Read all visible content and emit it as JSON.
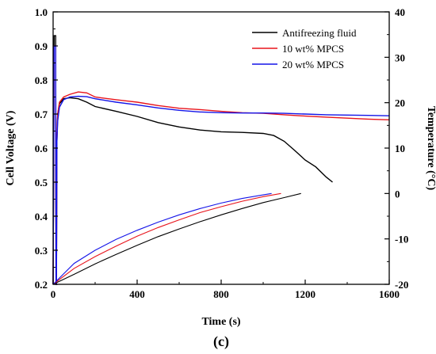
{
  "chart_data": {
    "type": "line",
    "xlabel": "Time (s)",
    "ylabel_left": "Cell Voltage (V)",
    "ylabel_right": "Temperature (°C)",
    "panel_label": "(c)",
    "xlim": [
      0,
      1600
    ],
    "ylim_left": [
      0.2,
      1.0
    ],
    "ylim_right": [
      -20,
      40
    ],
    "x_ticks": [
      "0",
      "400",
      "800",
      "1200",
      "1600"
    ],
    "y_ticks_left": [
      "0.2",
      "0.3",
      "0.4",
      "0.5",
      "0.6",
      "0.7",
      "0.8",
      "0.9",
      "1.0"
    ],
    "y_ticks_right": [
      "-20",
      "-10",
      "0",
      "10",
      "20",
      "30",
      "40"
    ],
    "legend": {
      "position": "top-right",
      "entries": [
        {
          "name": "Antifreezing fluid",
          "color": "#000000"
        },
        {
          "name": "10 wt% MPCS",
          "color": "#e8141c"
        },
        {
          "name": "20 wt% MPCS",
          "color": "#1414e8"
        }
      ]
    },
    "voltage_series": [
      {
        "name": "Antifreezing fluid",
        "color": "#000000",
        "points": [
          [
            0,
            0.2
          ],
          [
            5,
            0.93
          ],
          [
            12,
            0.93
          ],
          [
            14,
            0.2
          ],
          [
            16,
            0.2
          ],
          [
            18,
            0.62
          ],
          [
            22,
            0.7
          ],
          [
            30,
            0.73
          ],
          [
            50,
            0.745
          ],
          [
            80,
            0.748
          ],
          [
            120,
            0.745
          ],
          [
            160,
            0.735
          ],
          [
            200,
            0.722
          ],
          [
            300,
            0.708
          ],
          [
            400,
            0.693
          ],
          [
            500,
            0.675
          ],
          [
            600,
            0.662
          ],
          [
            700,
            0.653
          ],
          [
            800,
            0.648
          ],
          [
            900,
            0.646
          ],
          [
            1000,
            0.643
          ],
          [
            1050,
            0.637
          ],
          [
            1100,
            0.62
          ],
          [
            1150,
            0.593
          ],
          [
            1200,
            0.565
          ],
          [
            1250,
            0.545
          ],
          [
            1300,
            0.515
          ],
          [
            1330,
            0.5
          ]
        ]
      },
      {
        "name": "10 wt% MPCS",
        "color": "#e8141c",
        "points": [
          [
            0,
            0.2
          ],
          [
            5,
            0.9
          ],
          [
            12,
            0.9
          ],
          [
            14,
            0.2
          ],
          [
            16,
            0.2
          ],
          [
            18,
            0.64
          ],
          [
            22,
            0.7
          ],
          [
            30,
            0.735
          ],
          [
            50,
            0.75
          ],
          [
            80,
            0.758
          ],
          [
            120,
            0.765
          ],
          [
            160,
            0.762
          ],
          [
            200,
            0.75
          ],
          [
            300,
            0.742
          ],
          [
            400,
            0.735
          ],
          [
            500,
            0.725
          ],
          [
            600,
            0.717
          ],
          [
            700,
            0.713
          ],
          [
            800,
            0.708
          ],
          [
            900,
            0.704
          ],
          [
            1000,
            0.702
          ],
          [
            1100,
            0.698
          ],
          [
            1200,
            0.694
          ],
          [
            1300,
            0.691
          ],
          [
            1400,
            0.688
          ],
          [
            1500,
            0.685
          ],
          [
            1600,
            0.683
          ]
        ]
      },
      {
        "name": "20 wt% MPCS",
        "color": "#1414e8",
        "points": [
          [
            0,
            0.2
          ],
          [
            5,
            0.9
          ],
          [
            12,
            0.9
          ],
          [
            14,
            0.2
          ],
          [
            16,
            0.2
          ],
          [
            18,
            0.62
          ],
          [
            22,
            0.68
          ],
          [
            30,
            0.72
          ],
          [
            50,
            0.742
          ],
          [
            80,
            0.75
          ],
          [
            120,
            0.752
          ],
          [
            160,
            0.751
          ],
          [
            200,
            0.745
          ],
          [
            300,
            0.735
          ],
          [
            400,
            0.727
          ],
          [
            500,
            0.718
          ],
          [
            600,
            0.711
          ],
          [
            700,
            0.706
          ],
          [
            800,
            0.704
          ],
          [
            900,
            0.703
          ],
          [
            1000,
            0.703
          ],
          [
            1100,
            0.702
          ],
          [
            1200,
            0.7
          ],
          [
            1300,
            0.698
          ],
          [
            1400,
            0.697
          ],
          [
            1500,
            0.696
          ],
          [
            1600,
            0.695
          ]
        ]
      }
    ],
    "temperature_series": [
      {
        "name": "Antifreezing fluid",
        "color": "#000000",
        "points": [
          [
            0,
            -20
          ],
          [
            100,
            -17.8
          ],
          [
            200,
            -15.5
          ],
          [
            300,
            -13.4
          ],
          [
            400,
            -11.4
          ],
          [
            500,
            -9.5
          ],
          [
            600,
            -7.8
          ],
          [
            700,
            -6.2
          ],
          [
            800,
            -4.7
          ],
          [
            900,
            -3.3
          ],
          [
            1000,
            -2.0
          ],
          [
            1100,
            -0.9
          ],
          [
            1180,
            0.0
          ]
        ]
      },
      {
        "name": "10 wt% MPCS",
        "color": "#e8141c",
        "points": [
          [
            0,
            -20
          ],
          [
            100,
            -16.5
          ],
          [
            200,
            -13.9
          ],
          [
            300,
            -11.6
          ],
          [
            400,
            -9.4
          ],
          [
            500,
            -7.5
          ],
          [
            600,
            -5.8
          ],
          [
            700,
            -4.2
          ],
          [
            800,
            -2.9
          ],
          [
            900,
            -1.7
          ],
          [
            1000,
            -0.7
          ],
          [
            1085,
            0.0
          ]
        ]
      },
      {
        "name": "20 wt% MPCS",
        "color": "#1414e8",
        "points": [
          [
            0,
            -20
          ],
          [
            100,
            -15.4
          ],
          [
            200,
            -12.5
          ],
          [
            300,
            -10.1
          ],
          [
            400,
            -8.1
          ],
          [
            500,
            -6.3
          ],
          [
            600,
            -4.7
          ],
          [
            700,
            -3.3
          ],
          [
            800,
            -2.1
          ],
          [
            900,
            -1.1
          ],
          [
            1000,
            -0.3
          ],
          [
            1040,
            0.0
          ]
        ]
      }
    ]
  }
}
